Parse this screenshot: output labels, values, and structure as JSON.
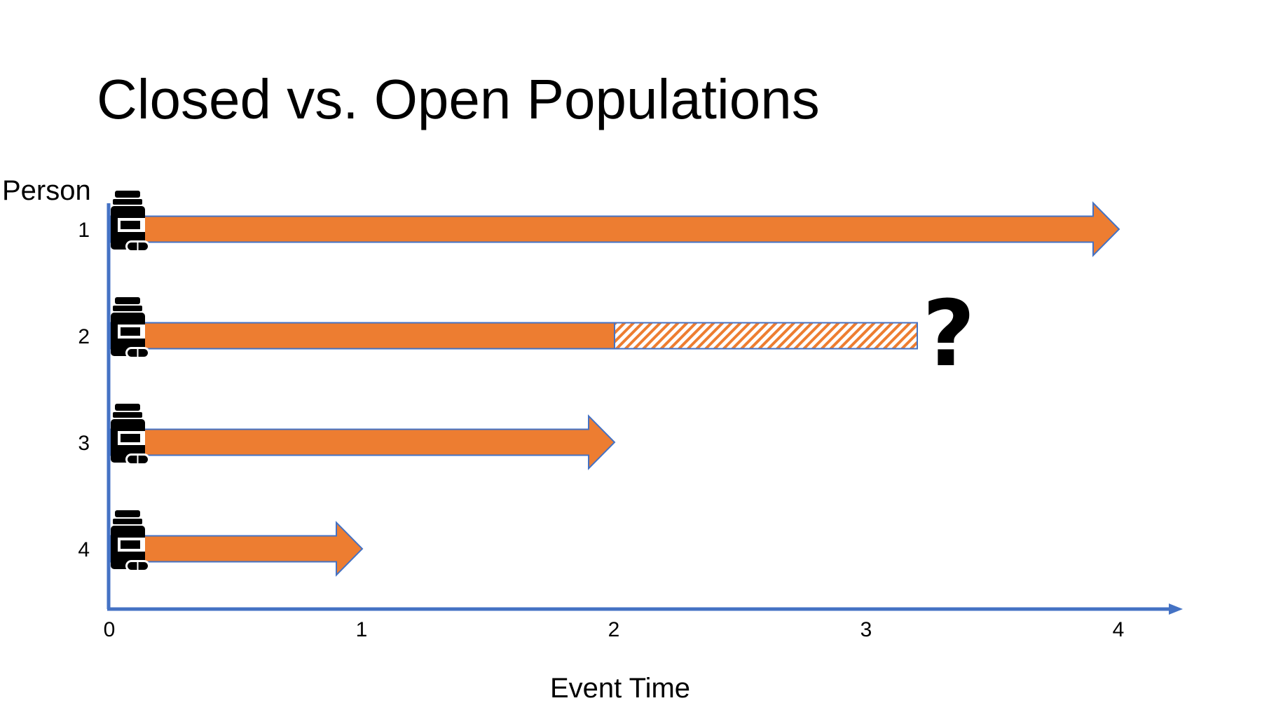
{
  "slide": {
    "title": "Closed vs. Open Populations"
  },
  "chart_data": {
    "type": "timeline",
    "xlabel": "Event Time",
    "ylabel": "Person",
    "x_ticks": [
      0,
      1,
      2,
      3,
      4
    ],
    "xlim": [
      0,
      4.25
    ],
    "persons": [
      {
        "label": "1",
        "start": 0,
        "end": 4,
        "arrow": true,
        "end_note": ""
      },
      {
        "label": "2",
        "start": 0,
        "end": 2,
        "arrow": false,
        "hatched_end": 3.2,
        "end_note": "?"
      },
      {
        "label": "3",
        "start": 0,
        "end": 2,
        "arrow": true,
        "end_note": ""
      },
      {
        "label": "4",
        "start": 0,
        "end": 1,
        "arrow": true,
        "end_note": ""
      }
    ],
    "start_marker_icon": "medication-bottle-icon",
    "colors": {
      "bar_fill": "#ED7D31",
      "bar_stroke": "#4472C4",
      "axis": "#4472C4"
    }
  }
}
